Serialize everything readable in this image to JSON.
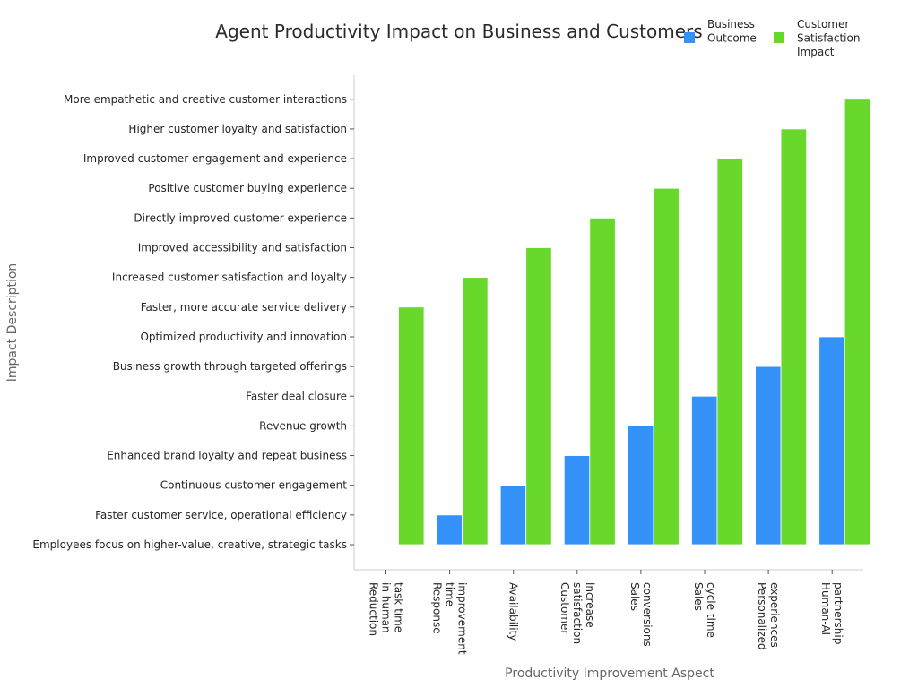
{
  "chart_data": {
    "type": "bar",
    "title": "Agent Productivity Impact on Business and Customers",
    "xlabel": "Productivity Improvement Aspect",
    "ylabel": "Impact Description",
    "categories": [
      [
        "Reduction",
        "in human",
        "task time"
      ],
      [
        "Response",
        "time",
        "improvement"
      ],
      [
        "Availability"
      ],
      [
        "Customer",
        "satisfaction",
        "increase"
      ],
      [
        "Sales",
        "conversions"
      ],
      [
        "Sales",
        "cycle time"
      ],
      [
        "Personalized",
        "experiences"
      ],
      [
        "Human-AI",
        "partnership"
      ]
    ],
    "y_categories": [
      "Employees focus on higher-value, creative, strategic tasks",
      "Faster customer service, operational efficiency",
      "Continuous customer engagement",
      "Enhanced brand loyalty and repeat business",
      "Revenue growth",
      "Faster deal closure",
      "Business growth through targeted offerings",
      "Optimized productivity and innovation",
      "Faster, more accurate service delivery",
      "Increased customer satisfaction and loyalty",
      "Improved accessibility and satisfaction",
      "Directly improved customer experience",
      "Positive customer buying experience",
      "Improved customer engagement and experience",
      "Higher customer loyalty and satisfaction",
      "More empathetic and creative customer interactions"
    ],
    "series": [
      {
        "name": "Business\nOutcome",
        "color": "#3391f7",
        "values": [
          "Employees focus on higher-value, creative, strategic tasks",
          "Faster customer service, operational efficiency",
          "Continuous customer engagement",
          "Enhanced brand loyalty and repeat business",
          "Revenue growth",
          "Faster deal closure",
          "Business growth through targeted offerings",
          "Optimized productivity and innovation"
        ]
      },
      {
        "name": "Customer\nSatisfaction\nImpact",
        "color": "#68d92a",
        "values": [
          "Faster, more accurate service delivery",
          "Increased customer satisfaction and loyalty",
          "Improved accessibility and satisfaction",
          "Directly improved customer experience",
          "Positive customer buying experience",
          "Improved customer engagement and experience",
          "Higher customer loyalty and satisfaction",
          "More empathetic and creative customer interactions"
        ]
      }
    ],
    "legend_position": "top-right",
    "grid": false
  }
}
